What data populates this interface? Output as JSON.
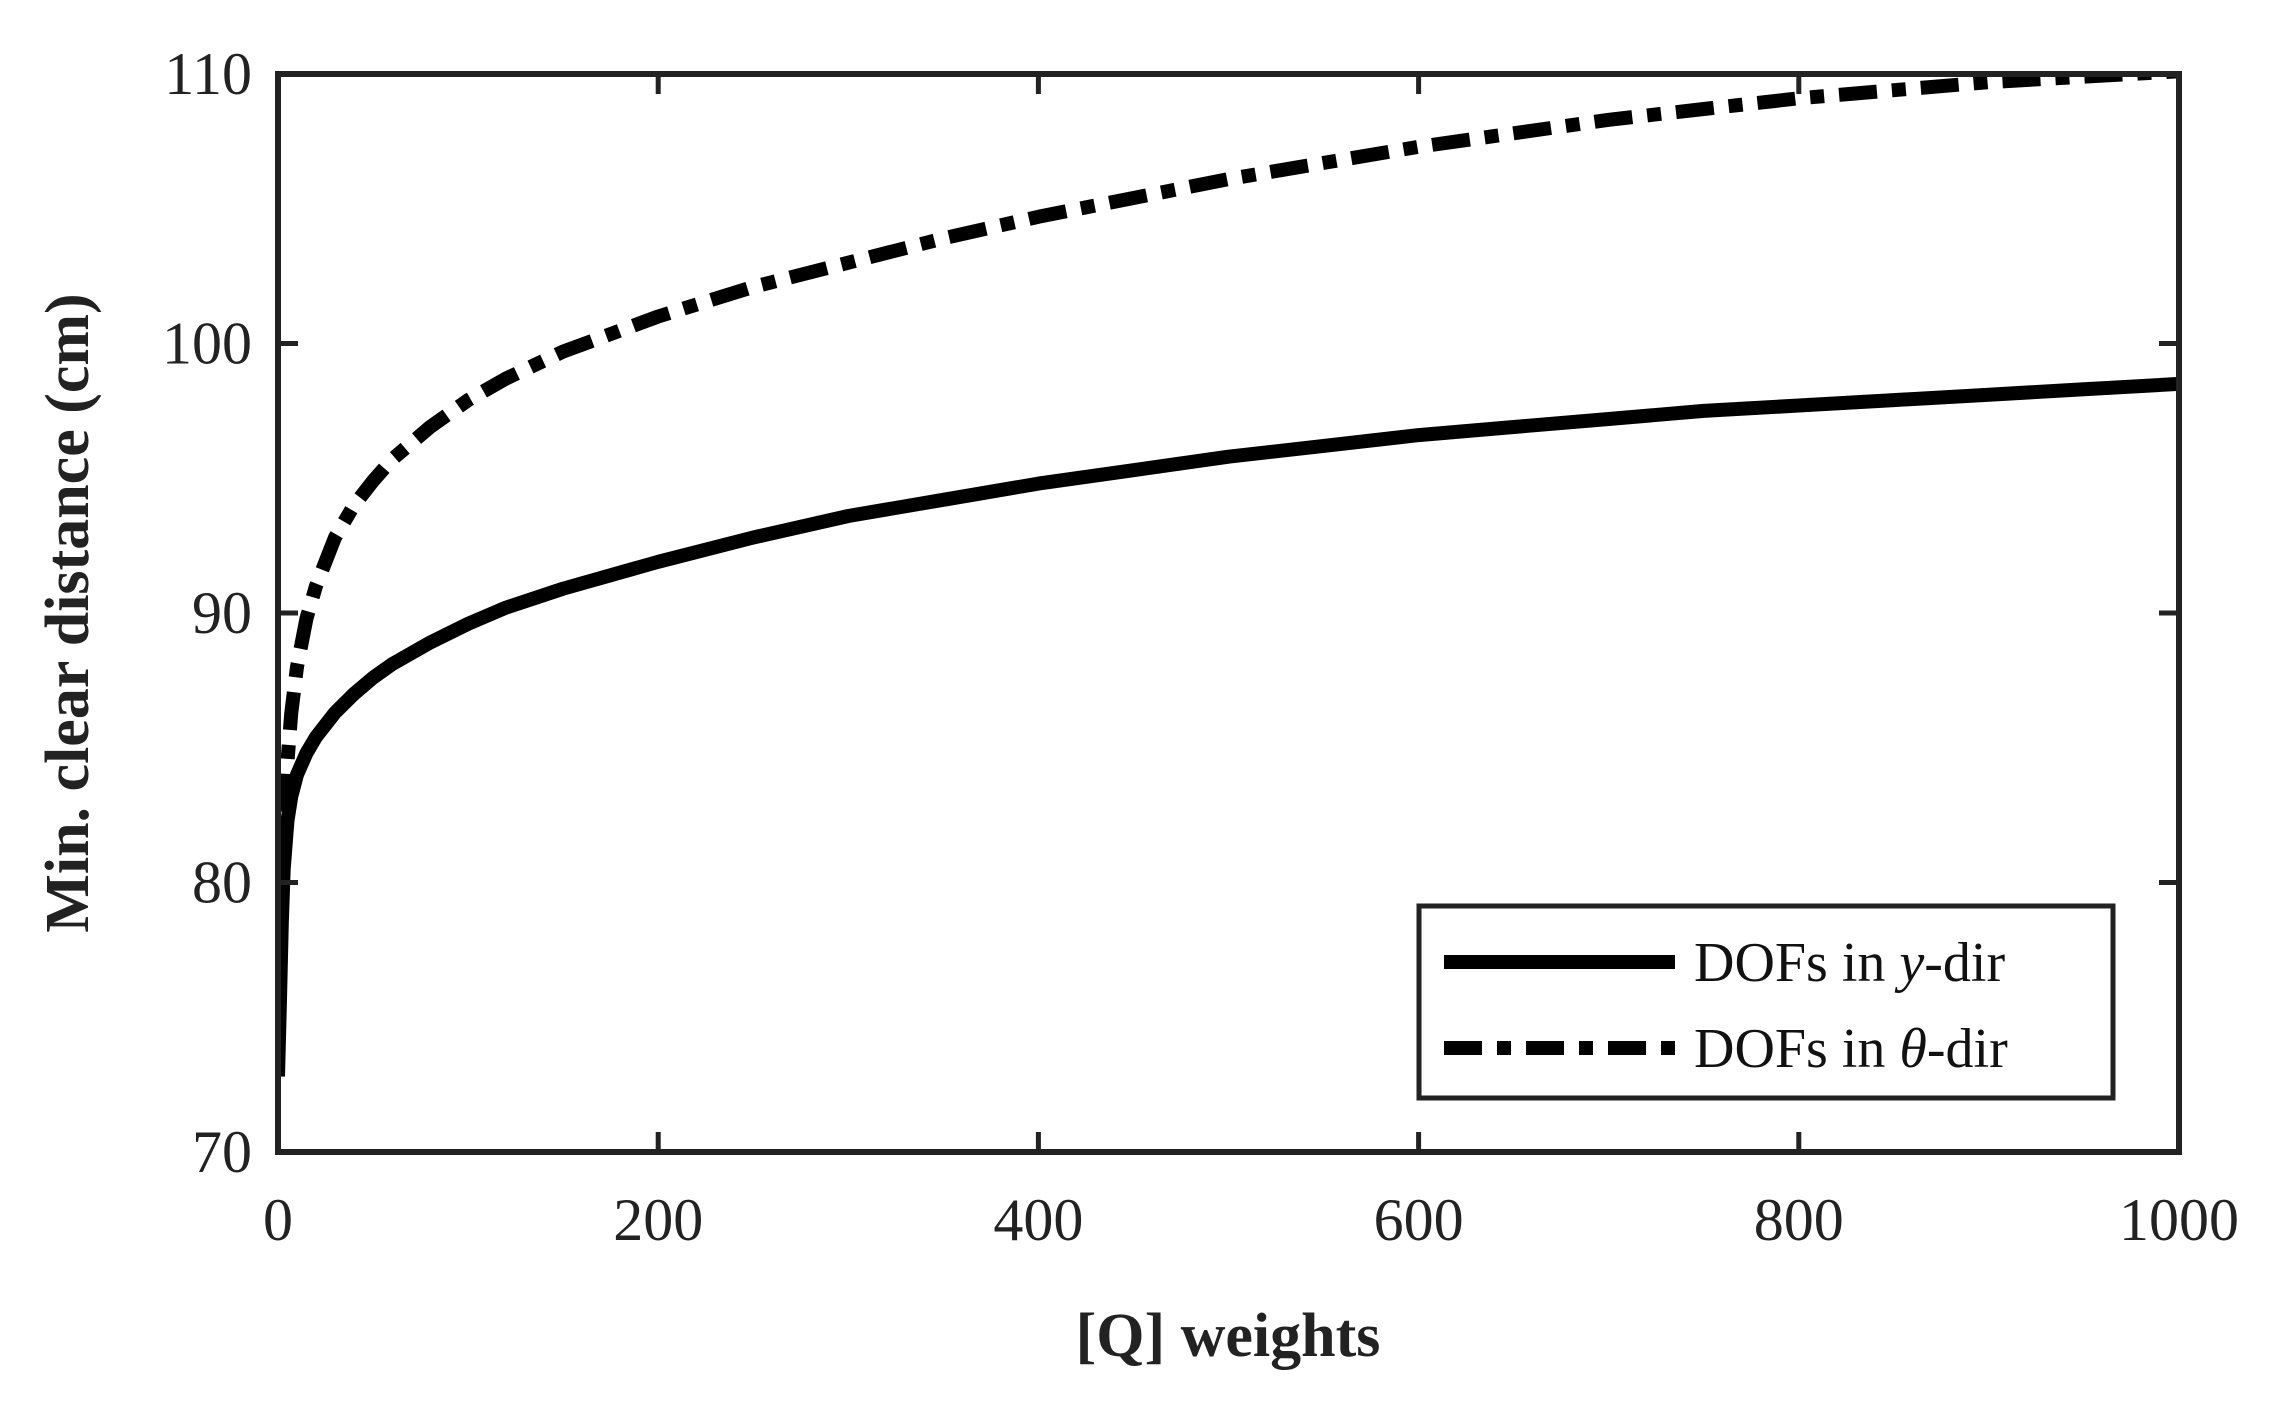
{
  "chart_data": {
    "type": "line",
    "title": "",
    "xlabel": "[Q] weights",
    "ylabel": "Min. clear distance (cm)",
    "xlim": [
      0,
      1000
    ],
    "ylim": [
      70,
      110
    ],
    "xticks": [
      0,
      200,
      400,
      600,
      800,
      1000
    ],
    "yticks": [
      70,
      80,
      90,
      100,
      110
    ],
    "xtick_labels": [
      "0",
      "200",
      "400",
      "600",
      "800",
      "1000"
    ],
    "ytick_labels": [
      "70",
      "80",
      "90",
      "100",
      "110"
    ],
    "grid": false,
    "legend_position": "bottom-right",
    "series": [
      {
        "name": "DOFs in y-dir",
        "legend_prefix": "DOFs in ",
        "legend_var": "y",
        "legend_suffix": "-dir",
        "style": "solid",
        "color": "#000000",
        "x": [
          0,
          1,
          2,
          3,
          5,
          7,
          10,
          15,
          20,
          30,
          40,
          50,
          60,
          80,
          100,
          120,
          150,
          200,
          250,
          300,
          350,
          400,
          450,
          500,
          550,
          600,
          650,
          700,
          750,
          800,
          850,
          900,
          950,
          1000
        ],
        "y": [
          72.8,
          75.5,
          78.5,
          80.5,
          82.3,
          83.2,
          84.0,
          84.8,
          85.4,
          86.3,
          87.0,
          87.6,
          88.1,
          88.9,
          89.6,
          90.2,
          90.9,
          91.9,
          92.8,
          93.6,
          94.2,
          94.8,
          95.3,
          95.8,
          96.2,
          96.6,
          96.9,
          97.2,
          97.5,
          97.7,
          97.9,
          98.1,
          98.3,
          98.5
        ]
      },
      {
        "name": "DOFs in θ-dir",
        "legend_prefix": "DOFs in ",
        "legend_var": "θ",
        "legend_suffix": "-dir",
        "style": "dashdot",
        "color": "#000000",
        "x": [
          0,
          1,
          2,
          3,
          5,
          7,
          10,
          15,
          20,
          30,
          40,
          50,
          60,
          80,
          100,
          120,
          150,
          200,
          250,
          300,
          350,
          400,
          450,
          500,
          550,
          600,
          650,
          700,
          750,
          800,
          850,
          900,
          950,
          1000
        ],
        "y": [
          73.5,
          76.5,
          79.8,
          82.0,
          84.5,
          86.3,
          88.0,
          89.8,
          91.0,
          92.8,
          94.0,
          94.9,
          95.7,
          96.9,
          97.9,
          98.7,
          99.7,
          101.0,
          102.1,
          103.0,
          103.9,
          104.7,
          105.4,
          106.1,
          106.7,
          107.3,
          107.8,
          108.3,
          108.7,
          109.1,
          109.4,
          109.7,
          109.9,
          110.1
        ]
      }
    ]
  }
}
